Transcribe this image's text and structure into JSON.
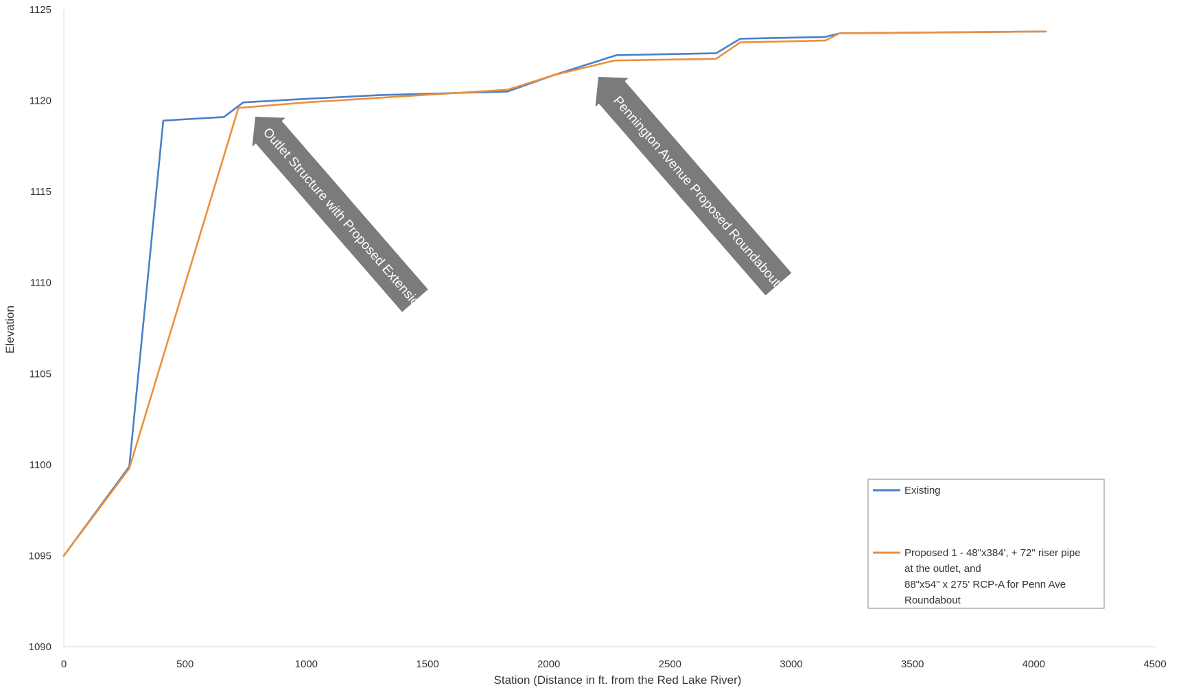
{
  "chart_data": {
    "type": "line",
    "title": "",
    "xlabel": "Station (Distance in ft. from the Red Lake River)",
    "ylabel": "Elevation",
    "xlim": [
      0,
      4500
    ],
    "ylim": [
      1090,
      1125
    ],
    "x_ticks": [
      0,
      500,
      1000,
      1500,
      2000,
      2500,
      3000,
      3500,
      4000,
      4500
    ],
    "y_ticks": [
      1090,
      1095,
      1100,
      1105,
      1110,
      1115,
      1120,
      1125
    ],
    "grid": false,
    "legend_position": "bottom-right",
    "series": [
      {
        "name": "Existing",
        "color": "#4a7fcb",
        "points": [
          [
            0,
            1095
          ],
          [
            270,
            1099.9
          ],
          [
            410,
            1118.9
          ],
          [
            660,
            1119.1
          ],
          [
            740,
            1119.9
          ],
          [
            1000,
            1120.1
          ],
          [
            1300,
            1120.3
          ],
          [
            1830,
            1120.5
          ],
          [
            2020,
            1121.4
          ],
          [
            2280,
            1122.5
          ],
          [
            2690,
            1122.6
          ],
          [
            2790,
            1123.4
          ],
          [
            3140,
            1123.5
          ],
          [
            3200,
            1123.7
          ],
          [
            4050,
            1123.8
          ]
        ]
      },
      {
        "name": "Proposed 1 - 48\"x384', + 72\" riser pipe at the outlet, and 88\"x54\" x 275' RCP-A for Penn Ave Roundabout",
        "legend_lines": [
          "Proposed 1 - 48\"x384', + 72\" riser pipe",
          "at the outlet, and",
          "88\"x54\" x 275' RCP-A for Penn Ave",
          "Roundabout"
        ],
        "color": "#ed8f3c",
        "points": [
          [
            0,
            1095
          ],
          [
            270,
            1099.8
          ],
          [
            720,
            1119.6
          ],
          [
            1000,
            1119.9
          ],
          [
            1830,
            1120.6
          ],
          [
            2020,
            1121.4
          ],
          [
            2270,
            1122.2
          ],
          [
            2690,
            1122.3
          ],
          [
            2790,
            1123.2
          ],
          [
            3140,
            1123.3
          ],
          [
            3200,
            1123.7
          ],
          [
            4050,
            1123.8
          ]
        ]
      }
    ],
    "annotations": [
      {
        "text": "Outlet Structure with Proposed Extension"
      },
      {
        "text": "Pennington Avenue Proposed Roundabout"
      }
    ]
  },
  "colors": {
    "arrow": "#7b7b7b",
    "axis": "#d9d9d9",
    "legend_border": "#9a9a9a"
  }
}
